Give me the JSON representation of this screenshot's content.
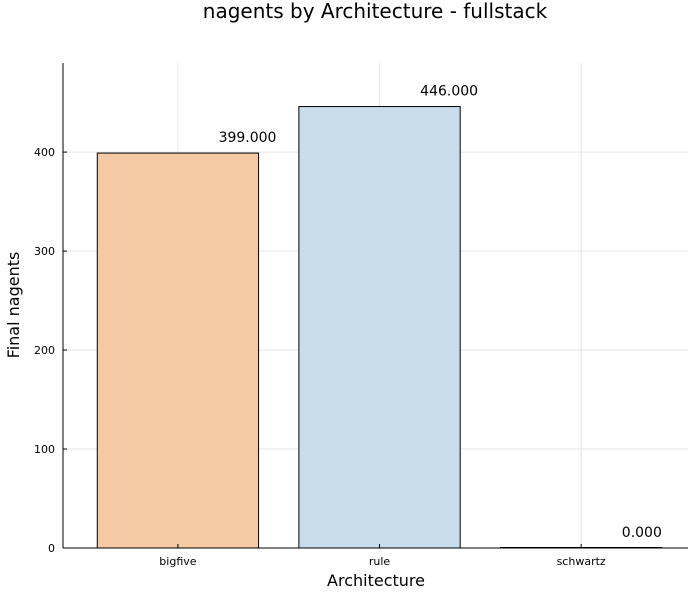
{
  "chart_data": {
    "type": "bar",
    "title": "nagents by Architecture - fullstack",
    "xlabel": "Architecture",
    "ylabel": "Final nagents",
    "categories": [
      "bigfive",
      "rule",
      "schwartz"
    ],
    "values": [
      399,
      446,
      0
    ],
    "data_labels": [
      "399.000",
      "446.000",
      "0.000"
    ],
    "colors": [
      "#f4c9a4",
      "#c9dcea",
      "#c9dcea"
    ],
    "ylim": [
      0,
      490
    ],
    "yticks": [
      0,
      100,
      200,
      300,
      400
    ],
    "grid": true,
    "legend": "none"
  }
}
